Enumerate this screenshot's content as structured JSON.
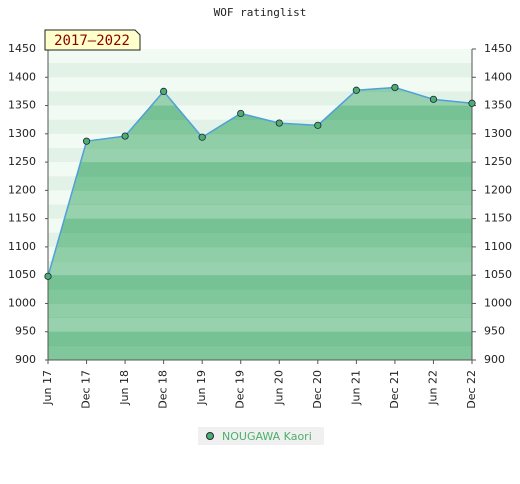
{
  "chart_data": {
    "type": "area",
    "title": "WOF ratinglist",
    "annotation": "2017–2022",
    "categories": [
      "Jun 17",
      "Dec 17",
      "Jun 18",
      "Dec 18",
      "Jun 19",
      "Dec 19",
      "Jun 20",
      "Dec 20",
      "Jun 21",
      "Dec 21",
      "Jun 22",
      "Dec 22"
    ],
    "series": [
      {
        "name": "NOUGAWA Kaori",
        "color": "#4fa0d8",
        "fill": "#6fbf8e",
        "marker_color": "#4caf6a",
        "values": [
          1048,
          1287,
          1296,
          1375,
          1294,
          1336,
          1319,
          1315,
          1377,
          1382,
          1361,
          1354
        ]
      }
    ],
    "ylim": [
      900,
      1450
    ],
    "yticks": [
      900,
      950,
      1000,
      1050,
      1100,
      1150,
      1200,
      1250,
      1300,
      1350,
      1400,
      1450
    ],
    "y2lim": [
      900,
      1450
    ],
    "y2ticks": [
      900,
      950,
      1000,
      1050,
      1100,
      1150,
      1200,
      1250,
      1300,
      1350,
      1400,
      1450
    ],
    "grid": false
  }
}
